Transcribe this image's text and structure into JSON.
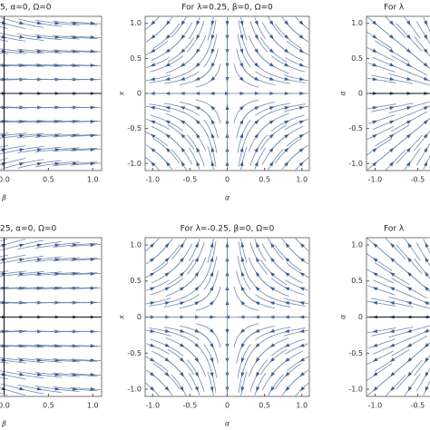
{
  "chart_data": [
    {
      "type": "streamplot",
      "title": "5, α=0, Ω=0",
      "xlabel": "β",
      "xlim": [
        -1.1,
        1.1
      ],
      "ylim": [
        -1.1,
        1.1
      ],
      "xticks": [
        {
          "value": 0,
          "label": "0.0"
        },
        0.5,
        {
          "value": 1,
          "label": "1.0"
        }
      ],
      "yticks": []
    },
    {
      "type": "streamplot",
      "title": "For λ=0.25, β=0, Ω=0",
      "xlabel": "α",
      "ylabel": "x",
      "xlim": [
        -1.1,
        1.1
      ],
      "ylim": [
        -1.1,
        1.1
      ],
      "xticks": [
        {
          "value": -1,
          "label": "-1.0"
        },
        -0.5,
        0,
        0.5,
        {
          "value": 1,
          "label": "1.0"
        }
      ],
      "yticks": [
        {
          "value": -1,
          "label": "-1.0"
        },
        -0.5,
        0,
        0.5,
        {
          "value": 1,
          "label": "1.0"
        }
      ]
    },
    {
      "type": "streamplot",
      "title": "For λ",
      "ylabel": "α",
      "xlim": [
        -1.1,
        1.1
      ],
      "ylim": [
        -1.1,
        1.1
      ],
      "xticks": [
        {
          "value": -1,
          "label": "-1.0"
        },
        {
          "value": -0.5,
          "label": "-0.5"
        }
      ],
      "yticks": [
        {
          "value": -1,
          "label": "-1.0"
        },
        -0.5,
        0,
        0.5,
        {
          "value": 1,
          "label": "1.0"
        }
      ]
    },
    {
      "type": "streamplot",
      "title": "25, α=0, Ω=0",
      "xlabel": "β",
      "xlim": [
        -1.1,
        1.1
      ],
      "ylim": [
        -1.1,
        1.1
      ],
      "xticks": [
        {
          "value": 0,
          "label": "0.0"
        },
        0.5,
        {
          "value": 1,
          "label": "1.0"
        }
      ],
      "yticks": []
    },
    {
      "type": "streamplot",
      "title": "For λ=-0.25, β=0, Ω=0",
      "xlabel": "α",
      "ylabel": "x",
      "xlim": [
        -1.1,
        1.1
      ],
      "ylim": [
        -1.1,
        1.1
      ],
      "xticks": [
        {
          "value": -1,
          "label": "-1.0"
        },
        -0.5,
        0,
        0.5,
        {
          "value": 1,
          "label": "1.0"
        }
      ],
      "yticks": [
        {
          "value": -1,
          "label": "-1.0"
        },
        -0.5,
        0,
        0.5,
        {
          "value": 1,
          "label": "1.0"
        }
      ]
    },
    {
      "type": "streamplot",
      "title": "For λ",
      "ylabel": "α",
      "xlim": [
        -1.1,
        1.1
      ],
      "ylim": [
        -1.1,
        1.1
      ],
      "xticks": [
        {
          "value": -1,
          "label": "-1.0"
        },
        {
          "value": -0.5,
          "label": "-0.5"
        }
      ],
      "yticks": [
        {
          "value": -1,
          "label": "-1.0"
        },
        -0.5,
        0,
        0.5,
        {
          "value": 1,
          "label": "1.0"
        }
      ]
    }
  ]
}
